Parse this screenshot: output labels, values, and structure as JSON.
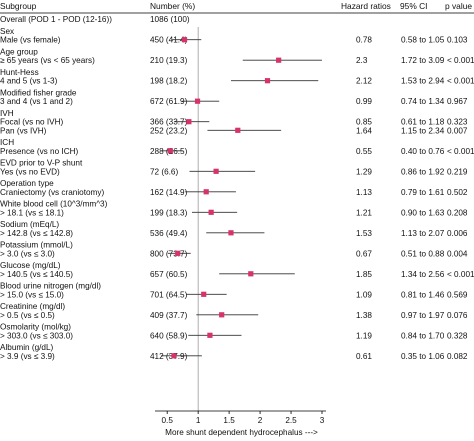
{
  "chart_data": {
    "type": "forest",
    "headers": {
      "subgroup": "Subgroup",
      "number": "Number (%)",
      "hr": "Hazard ratios",
      "ci": "95% CI",
      "p": "p value"
    },
    "overall": {
      "label": "Overall (POD 1 - POD (12-16))",
      "n": "1086 (100)"
    },
    "groups": [
      {
        "title": "Sex",
        "rows": [
          {
            "label": "Male (vs female)",
            "n": "450 (41.4)",
            "hr": 0.78,
            "hr_text": "0.78",
            "ci_low": 0.58,
            "ci_high": 1.05,
            "ci_text": "0.58 to 1.05",
            "p": "0.103"
          }
        ]
      },
      {
        "title": "Age group",
        "rows": [
          {
            "label": "≥ 65 years (vs < 65 years)",
            "n": "210 (19.3)",
            "hr": 2.3,
            "hr_text": "2.3",
            "ci_low": 1.72,
            "ci_high": 3.09,
            "ci_text": "1.72 to 3.09",
            "p": "< 0.001"
          }
        ]
      },
      {
        "title": "Hunt-Hess",
        "rows": [
          {
            "label": "4 and 5 (vs 1-3)",
            "n": "198 (18.2)",
            "hr": 2.12,
            "hr_text": "2.12",
            "ci_low": 1.53,
            "ci_high": 2.94,
            "ci_text": "1.53 to 2.94",
            "p": "< 0.001"
          }
        ]
      },
      {
        "title": "Modified fisher grade",
        "rows": [
          {
            "label": "3 and 4 (vs 1 and 2)",
            "n": "672 (61.9)",
            "hr": 0.99,
            "hr_text": "0.99",
            "ci_low": 0.74,
            "ci_high": 1.34,
            "ci_text": "0.74 to 1.34",
            "p": "0.967"
          }
        ]
      },
      {
        "title": "IVH",
        "rows": [
          {
            "label": "Focal (vs no IVH)",
            "n": "366 (33.7)",
            "hr": 0.85,
            "hr_text": "0.85",
            "ci_low": 0.61,
            "ci_high": 1.18,
            "ci_text": "0.61 to 1.18",
            "p": "0.323"
          },
          {
            "label": "Pan (vs IVH)",
            "n": "252 (23.2)",
            "hr": 1.64,
            "hr_text": "1.64",
            "ci_low": 1.15,
            "ci_high": 2.34,
            "ci_text": "1.15 to 2.34",
            "p": "0.007"
          }
        ]
      },
      {
        "title": "ICH",
        "rows": [
          {
            "label": "Presence (vs no ICH)",
            "n": "288 (26.5)",
            "hr": 0.55,
            "hr_text": "0.55",
            "ci_low": 0.4,
            "ci_high": 0.76,
            "ci_text": "0.40 to 0.76",
            "p": "< 0.001"
          }
        ]
      },
      {
        "title": "EVD prior to V-P shunt",
        "rows": [
          {
            "label": "Yes (vs no EVD)",
            "n": "72 (6.6)",
            "hr": 1.29,
            "hr_text": "1.29",
            "ci_low": 0.86,
            "ci_high": 1.92,
            "ci_text": "0.86 to 1.92",
            "p": "0.219"
          }
        ]
      },
      {
        "title": "Operation type",
        "rows": [
          {
            "label": "Craniectomy (vs craniotomy)",
            "n": "162 (14.9)",
            "hr": 1.13,
            "hr_text": "1.13",
            "ci_low": 0.79,
            "ci_high": 1.61,
            "ci_text": "0.79 to 1.61",
            "p": "0.502"
          }
        ]
      },
      {
        "title": "White blood cell (10^3/mm^3)",
        "rows": [
          {
            "label": "> 18.1 (vs ≤ 18.1)",
            "n": "199 (18.3)",
            "hr": 1.21,
            "hr_text": "1.21",
            "ci_low": 0.9,
            "ci_high": 1.63,
            "ci_text": "0.90 to 1.63",
            "p": "0.208"
          }
        ]
      },
      {
        "title": "Sodium (mEq/L)",
        "rows": [
          {
            "label": "> 142.8 (vs ≤ 142.8)",
            "n": "536 (49.4)",
            "hr": 1.53,
            "hr_text": "1.53",
            "ci_low": 1.13,
            "ci_high": 2.07,
            "ci_text": "1.13 to 2.07",
            "p": "0.006"
          }
        ]
      },
      {
        "title": "Potassium (mmol/L)",
        "rows": [
          {
            "label": "> 3.0 (vs ≤ 3.0)",
            "n": "800 (73.7)",
            "hr": 0.67,
            "hr_text": "0.67",
            "ci_low": 0.51,
            "ci_high": 0.88,
            "ci_text": "0.51 to 0.88",
            "p": "0.004"
          }
        ]
      },
      {
        "title": "Glucose (mg/dL)",
        "rows": [
          {
            "label": "> 140.5 (vs ≤ 140.5)",
            "n": "657 (60.5)",
            "hr": 1.85,
            "hr_text": "1.85",
            "ci_low": 1.34,
            "ci_high": 2.56,
            "ci_text": "1.34 to 2.56",
            "p": "< 0.001"
          }
        ]
      },
      {
        "title": "Blood urine nitrogen (mg/dl)",
        "rows": [
          {
            "label": "> 15.0 (vs ≤ 15.0)",
            "n": "701 (64.5)",
            "hr": 1.09,
            "hr_text": "1.09",
            "ci_low": 0.81,
            "ci_high": 1.46,
            "ci_text": "0.81 to 1.46",
            "p": "0.569"
          }
        ]
      },
      {
        "title": "Creatinine (mg/dl)",
        "rows": [
          {
            "label": "> 0.5 (vs ≤ 0.5)",
            "n": "409 (37.7)",
            "hr": 1.38,
            "hr_text": "1.38",
            "ci_low": 0.97,
            "ci_high": 1.97,
            "ci_text": "0.97 to 1.97",
            "p": "0.076"
          }
        ]
      },
      {
        "title": "Osmolarity (mol/kg)",
        "rows": [
          {
            "label": "> 303.0 (vs ≤ 303.0)",
            "n": "640 (58.9)",
            "hr": 1.19,
            "hr_text": "1.19",
            "ci_low": 0.84,
            "ci_high": 1.7,
            "ci_text": "0.84 to 1.70",
            "p": "0.328"
          }
        ]
      },
      {
        "title": "Albumin (g/dL)",
        "rows": [
          {
            "label": "> 3.9 (vs ≤ 3.9)",
            "n": "412 (37.9)",
            "hr": 0.61,
            "hr_text": "0.61",
            "ci_low": 0.35,
            "ci_high": 1.06,
            "ci_text": "0.35 to 1.06",
            "p": "0.082"
          }
        ]
      }
    ],
    "x_axis": {
      "range": [
        0.4,
        3.0
      ],
      "ticks": [
        0.5,
        1.0,
        1.5,
        2.0,
        2.5,
        3.0
      ],
      "tick_labels": [
        "0.5",
        "1",
        "1.5",
        "2",
        "2.5",
        "3"
      ],
      "label": "More shunt dependent hydrocephalus --->",
      "reference_line": 1.0
    },
    "colors": {
      "marker": "#d6336c",
      "ci_line": "#333333",
      "reference_line": "#999999",
      "text": "#111111"
    }
  }
}
